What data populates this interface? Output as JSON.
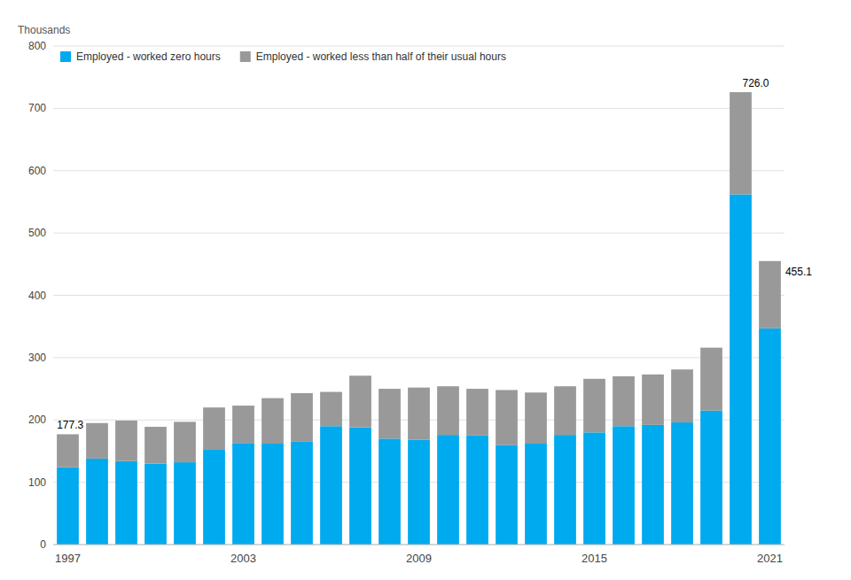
{
  "chart_data": {
    "type": "bar",
    "stacked": true,
    "grid": true,
    "legend": "top-left",
    "ylabel": "Thousands",
    "categories": [
      "1997",
      null,
      null,
      null,
      null,
      null,
      "2003",
      null,
      null,
      null,
      null,
      null,
      "2009",
      null,
      null,
      null,
      null,
      null,
      "2015",
      null,
      null,
      null,
      null,
      null,
      "2021"
    ],
    "series": [
      {
        "name": "Employed - worked zero hours",
        "color": "#00aaee",
        "values": [
          124,
          138,
          134,
          130,
          132,
          152,
          163,
          162,
          165,
          190,
          188,
          170,
          168,
          176,
          175,
          160,
          162,
          176,
          180,
          190,
          192,
          196,
          215,
          562,
          347
        ]
      },
      {
        "name": "Employed - worked less than half of their usual hours",
        "color": "#999999",
        "values": [
          53,
          57,
          65,
          59,
          65,
          68,
          60,
          73,
          78,
          55,
          83,
          80,
          84,
          78,
          75,
          88,
          82,
          78,
          86,
          80,
          81,
          85,
          101,
          164,
          108
        ]
      }
    ],
    "ylim": [
      0,
      800
    ],
    "yticks": [
      0,
      100,
      200,
      300,
      400,
      500,
      600,
      700,
      800
    ],
    "annotations": [
      {
        "text": "177.3",
        "index": 0
      },
      {
        "text": "726.0",
        "index": 23
      },
      {
        "text": "455.1",
        "index": 24
      }
    ]
  }
}
